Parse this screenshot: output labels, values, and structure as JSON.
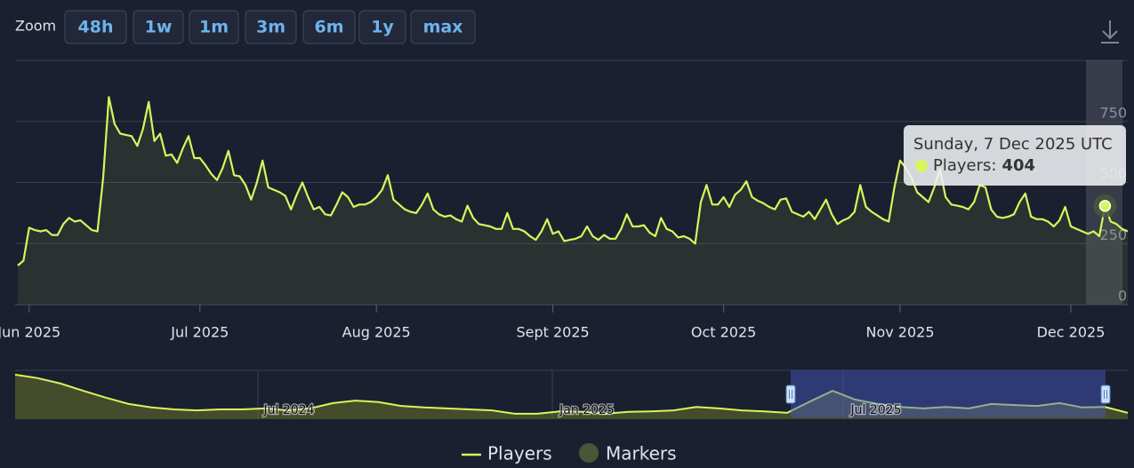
{
  "zoom": {
    "label": "Zoom",
    "buttons": [
      "48h",
      "1w",
      "1m",
      "3m",
      "6m",
      "1y",
      "max"
    ]
  },
  "chart_data": {
    "type": "line",
    "categories": [
      null,
      null,
      "Jun 2025",
      null,
      null,
      null,
      null,
      null,
      null,
      null,
      null,
      null,
      null,
      null,
      null,
      null,
      null,
      null,
      null,
      null,
      null,
      null,
      null,
      null,
      null,
      null,
      null,
      null,
      null,
      null,
      null,
      null,
      "Jul 2025",
      null,
      null,
      null,
      null,
      null,
      null,
      null,
      null,
      null,
      null,
      null,
      null,
      null,
      null,
      null,
      null,
      null,
      null,
      null,
      null,
      null,
      null,
      null,
      null,
      null,
      null,
      null,
      null,
      null,
      null,
      "Aug 2025",
      null,
      null,
      null,
      null,
      null,
      null,
      null,
      null,
      null,
      null,
      null,
      null,
      null,
      null,
      null,
      null,
      null,
      null,
      null,
      null,
      null,
      null,
      null,
      null,
      null,
      null,
      null,
      null,
      null,
      null,
      "Sept 2025",
      null,
      null,
      null,
      null,
      null,
      null,
      null,
      null,
      null,
      null,
      null,
      null,
      null,
      null,
      null,
      null,
      null,
      null,
      null,
      null,
      null,
      null,
      null,
      null,
      null,
      null,
      null,
      null,
      null,
      "Oct 2025",
      null,
      null,
      null,
      null,
      null,
      null,
      null,
      null,
      null,
      null,
      null,
      null,
      null,
      null,
      null,
      null,
      null,
      null,
      null,
      null,
      null,
      null,
      null,
      null,
      null,
      null,
      null,
      null,
      null,
      null,
      "Nov 2025",
      null,
      null,
      null,
      null,
      null,
      null,
      null,
      null,
      null,
      null,
      null,
      null,
      null,
      null,
      null,
      null,
      null,
      null,
      null,
      null,
      null,
      null,
      null,
      null,
      null,
      null,
      null,
      null,
      null,
      "Dec 2025",
      null,
      null,
      null,
      null,
      null,
      null,
      null,
      null,
      null,
      null
    ],
    "series": [
      {
        "name": "Players",
        "color": "#d6f65c",
        "values": [
          160,
          180,
          315,
          305,
          300,
          305,
          285,
          285,
          330,
          355,
          340,
          345,
          325,
          305,
          300,
          520,
          850,
          740,
          700,
          695,
          690,
          650,
          720,
          830,
          670,
          700,
          610,
          615,
          580,
          640,
          690,
          600,
          600,
          570,
          535,
          510,
          560,
          630,
          530,
          525,
          490,
          430,
          500,
          590,
          480,
          470,
          460,
          445,
          390,
          450,
          500,
          440,
          390,
          400,
          370,
          365,
          410,
          460,
          440,
          400,
          410,
          410,
          420,
          440,
          470,
          530,
          430,
          410,
          390,
          380,
          375,
          410,
          455,
          390,
          370,
          360,
          365,
          350,
          340,
          405,
          355,
          330,
          325,
          320,
          310,
          310,
          375,
          310,
          310,
          300,
          280,
          265,
          300,
          350,
          290,
          300,
          260,
          265,
          270,
          280,
          320,
          280,
          265,
          285,
          270,
          270,
          310,
          370,
          320,
          320,
          325,
          295,
          280,
          355,
          310,
          300,
          275,
          280,
          270,
          250,
          420,
          490,
          410,
          410,
          440,
          400,
          450,
          470,
          505,
          440,
          425,
          415,
          400,
          390,
          430,
          435,
          380,
          370,
          360,
          380,
          350,
          390,
          430,
          370,
          330,
          345,
          355,
          380,
          490,
          400,
          380,
          365,
          350,
          340,
          480,
          590,
          560,
          520,
          460,
          440,
          420,
          480,
          555,
          440,
          410,
          405,
          400,
          390,
          420,
          490,
          480,
          390,
          360,
          355,
          360,
          370,
          420,
          455,
          360,
          350,
          350,
          340,
          320,
          345,
          400,
          320,
          310,
          300,
          290,
          300,
          280,
          404,
          340,
          330,
          310,
          300
        ]
      }
    ],
    "markers": {
      "name": "Markers",
      "color": "#4b5638"
    },
    "ylim": [
      0,
      1000
    ],
    "yticks": [
      0,
      250,
      500,
      750
    ],
    "grid": true,
    "tooltip": {
      "title": "Sunday, 7 Dec 2025 UTC",
      "label": "Players:"
    },
    "navigator": {
      "labels": [
        "Jul 2024",
        "Jan 2025",
        "Jul 2025"
      ],
      "ylim": [
        0,
        1000
      ],
      "values": [
        910,
        840,
        730,
        580,
        440,
        310,
        240,
        200,
        180,
        200,
        200,
        220,
        180,
        220,
        330,
        380,
        350,
        270,
        240,
        220,
        200,
        180,
        110,
        110,
        160,
        150,
        110,
        150,
        160,
        180,
        250,
        220,
        180,
        160,
        130,
        360,
        580,
        400,
        310,
        250,
        220,
        250,
        220,
        310,
        290,
        270,
        330,
        240,
        250,
        130
      ]
    }
  }
}
